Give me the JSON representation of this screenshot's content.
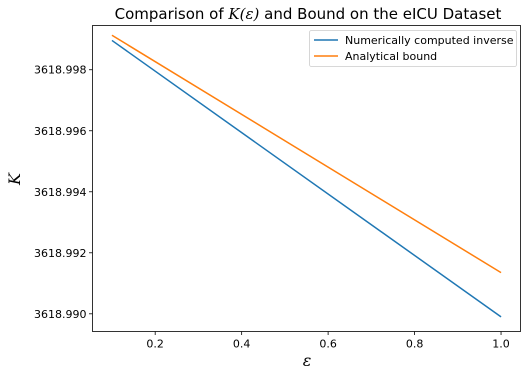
{
  "chart_data": {
    "type": "line",
    "title_prefix": "Comparison of ",
    "title_math": "K(ε)",
    "title_suffix": " and Bound on the eICU Dataset",
    "xlabel": "ε",
    "ylabel": "K",
    "xlim": [
      0.055,
      1.045
    ],
    "ylim": [
      3618.98942,
      3618.99945
    ],
    "xticks": [
      0.2,
      0.4,
      0.6,
      0.8,
      1.0
    ],
    "xtick_labels": [
      "0.2",
      "0.4",
      "0.6",
      "0.8",
      "1.0"
    ],
    "yticks": [
      3618.99,
      3618.992,
      3618.994,
      3618.996,
      3618.998
    ],
    "ytick_labels": [
      "3618.990",
      "3618.992",
      "3618.994",
      "3618.996",
      "3618.998"
    ],
    "grid": false,
    "legend_position": "top-right",
    "series": [
      {
        "name": "Numerically computed inverse",
        "color": "#1f77b4",
        "x": [
          0.1,
          1.0
        ],
        "y": [
          3618.99896,
          3618.9899
        ]
      },
      {
        "name": "Analytical bound",
        "color": "#ff7f0e",
        "x": [
          0.1,
          1.0
        ],
        "y": [
          3618.99913,
          3618.99135
        ]
      }
    ]
  }
}
